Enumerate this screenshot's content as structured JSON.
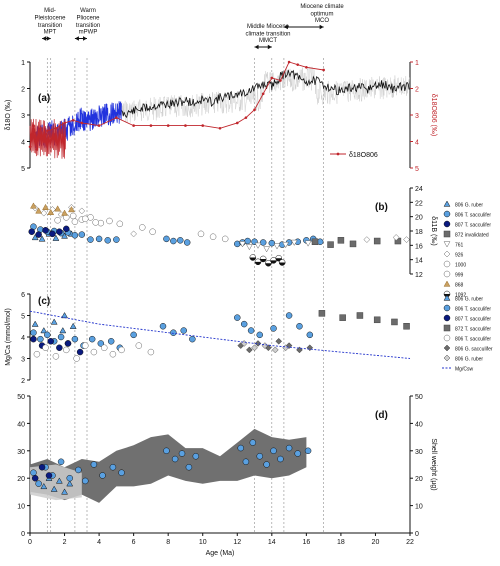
{
  "colors": {
    "black": "#111111",
    "red": "#c0262c",
    "blue": "#2233dd",
    "light_blue": "#5aa0e0",
    "navy": "#0a1a80",
    "tan": "#c9a060",
    "grey": "#888888",
    "dark_grey": "#6b6b6b",
    "light_grey": "#cfcfcf",
    "bg_grey": "#bdbdbd",
    "dotted": "#8c8c8c",
    "mgca_fit": "#2233cc"
  },
  "events": [
    {
      "label": "Mid-Pleistocene transition",
      "label_lines": [
        "Mid-",
        "Pleistocene",
        "transition"
      ],
      "short": "MPT",
      "start": 0.7,
      "end": 1.2
    },
    {
      "label": "Warm Pliocene transition",
      "label_lines": [
        "Warm",
        "Pliocene",
        "transition"
      ],
      "short": "mPWP",
      "start": 2.6,
      "end": 3.3
    },
    {
      "label": "Middle Miocene climate transition",
      "label_lines": [
        "Middle Miocene",
        "climate transition"
      ],
      "short": "MMCT",
      "start": 13.0,
      "end": 14.0
    },
    {
      "label": "Miocene climate optimum",
      "label_lines": [
        "Miocene climate",
        "optimum"
      ],
      "short": "MCO",
      "start": 14.7,
      "end": 17.0
    }
  ],
  "guide_lines": [
    1.0,
    1.2,
    2.6,
    3.3,
    13.0,
    14.0,
    14.7,
    17.0
  ],
  "chart_data": [
    {
      "panel": "a",
      "type": "line",
      "xlabel": "",
      "ylabel_left": "δ18O (‰)",
      "ylabel_right": "δ18O806 (‰)",
      "xlim": [
        0,
        22
      ],
      "ylim_left": [
        5,
        1
      ],
      "ylim_right": [
        5,
        1
      ],
      "left_ticks": [
        1,
        2,
        3,
        4,
        5
      ],
      "right_ticks": [
        1,
        2,
        3,
        4,
        5
      ],
      "legend": "δ18O806",
      "series": [
        {
          "name": "",
          "color": "black",
          "x": [
            5.0,
            5.5,
            6.0,
            6.5,
            7.0,
            7.5,
            8.0,
            8.5,
            9.0,
            9.5,
            10.0,
            10.5,
            11.0,
            11.5,
            12.0,
            12.5,
            13.0,
            13.5,
            14.0,
            14.5,
            15.0,
            15.5,
            16.0,
            16.5,
            17.0,
            17.5,
            18.0,
            18.5,
            19.0,
            19.5,
            20.0,
            20.5,
            21.0,
            21.5,
            22.0
          ],
          "y": [
            2.9,
            2.95,
            2.85,
            2.75,
            2.7,
            2.6,
            2.6,
            2.55,
            2.45,
            2.55,
            2.4,
            2.5,
            2.35,
            2.3,
            2.2,
            2.15,
            2.0,
            1.85,
            1.9,
            1.55,
            1.35,
            1.6,
            1.75,
            1.7,
            1.85,
            2.0,
            2.1,
            2.0,
            1.95,
            2.05,
            1.9,
            1.85,
            2.0,
            1.95,
            1.9
          ]
        },
        {
          "name": "",
          "color": "blue",
          "x": [
            0.3,
            0.6,
            0.9,
            1.2,
            1.5,
            1.8,
            2.1,
            2.4,
            2.7,
            3.0,
            3.3,
            3.6,
            3.9,
            4.2,
            4.5,
            4.8,
            5.1,
            5.3
          ],
          "y": [
            4.0,
            3.7,
            3.9,
            3.6,
            3.8,
            3.5,
            3.6,
            3.4,
            3.3,
            3.1,
            3.3,
            3.2,
            3.1,
            3.0,
            3.0,
            2.95,
            2.9,
            2.9
          ]
        },
        {
          "name": "δ18O806",
          "color": "red",
          "x": [
            0.0,
            0.2,
            0.4,
            0.6,
            0.8,
            1.0,
            1.5,
            2.0,
            2.5,
            3.0,
            4.0,
            5.0,
            6.0,
            7.0,
            8.0,
            9.0,
            10.0,
            11.0,
            12.0,
            12.5,
            13.0,
            13.5,
            14.0,
            14.5,
            15.0,
            15.5,
            16.0,
            17.0
          ],
          "y": [
            4.2,
            3.4,
            4.3,
            3.5,
            4.0,
            3.6,
            3.5,
            3.3,
            3.2,
            3.3,
            3.4,
            3.1,
            3.4,
            3.4,
            3.4,
            3.4,
            3.4,
            3.5,
            3.3,
            3.1,
            2.8,
            2.2,
            1.6,
            1.7,
            1.0,
            1.1,
            1.2,
            1.3
          ]
        }
      ]
    },
    {
      "panel": "b",
      "type": "scatter",
      "ylabel": "δ11B (‰)",
      "xlim": [
        0,
        22
      ],
      "ylim": [
        12,
        24
      ],
      "ticks": [
        12,
        14,
        16,
        18,
        20,
        22,
        24
      ],
      "legend": [
        "806 G. ruber",
        "806 T. sacculifer",
        "807 T. sacculifer",
        "872 invalidated",
        "761",
        "926",
        "1000",
        "999",
        "868",
        "1092"
      ],
      "series": [
        {
          "name": "806 G. ruber",
          "marker": "triangle",
          "color": "light_blue",
          "x": [
            0.3,
            0.7,
            1.1,
            1.5,
            2.0,
            2.4
          ],
          "y": [
            17.1,
            16.9,
            17.6,
            17.0,
            17.3,
            17.6
          ]
        },
        {
          "name": "806 T. sacculifer",
          "marker": "circle",
          "color": "light_blue",
          "x": [
            0.2,
            0.6,
            1.0,
            1.4,
            1.8,
            2.2,
            2.6,
            3.0,
            3.5,
            4.0,
            4.5,
            5.0,
            7.9,
            8.3,
            8.7,
            9.1,
            12.0,
            12.3,
            12.6,
            13.0,
            13.5,
            14.0,
            14.6,
            15.0,
            15.5,
            16.0,
            16.4,
            16.8
          ],
          "y": [
            18.6,
            18.2,
            17.9,
            18.0,
            17.7,
            17.8,
            17.4,
            17.5,
            16.8,
            16.9,
            16.7,
            16.8,
            16.9,
            16.6,
            16.7,
            16.4,
            16.2,
            16.4,
            16.6,
            16.5,
            16.4,
            16.3,
            16.1,
            16.4,
            16.5,
            16.7,
            16.9,
            16.5
          ]
        },
        {
          "name": "807 T. sacculifer",
          "marker": "circle",
          "color": "navy",
          "x": [
            0.1,
            0.5,
            0.9,
            1.3,
            1.7,
            2.1
          ],
          "y": [
            17.9,
            17.5,
            18.1,
            17.6,
            17.9,
            18.3
          ]
        },
        {
          "name": "872 invalidated",
          "marker": "square",
          "color": "dark_grey",
          "x": [
            16.5,
            17.4,
            18.0,
            18.7,
            20.1,
            21.3
          ],
          "y": [
            16.5,
            16.1,
            16.7,
            16.2,
            16.6,
            16.6
          ]
        },
        {
          "name": "761",
          "marker": "tri-down",
          "color": "white",
          "x": [
            12.3,
            12.7,
            13.2,
            13.7,
            14.3,
            14.8,
            15.3,
            16.1
          ],
          "y": [
            16.2,
            15.8,
            16.0,
            15.5,
            15.9,
            16.1,
            16.4,
            16.3
          ]
        },
        {
          "name": "926",
          "marker": "diamond",
          "color": "white",
          "x": [
            0.3,
            0.8,
            1.3,
            1.8,
            2.4,
            3.0,
            6.0,
            19.5,
            21.2,
            21.8
          ],
          "y": [
            21.2,
            20.5,
            21.0,
            20.3,
            21.3,
            20.8,
            17.6,
            16.8,
            17.1,
            16.8
          ]
        },
        {
          "name": "1000",
          "marker": "circle",
          "color": "white",
          "x": [
            2.5,
            3.0,
            3.5,
            4.1,
            4.6,
            5.2,
            6.5,
            7.1,
            9.9,
            10.6,
            11.3
          ],
          "y": [
            20.1,
            19.6,
            19.9,
            19.1,
            19.4,
            19.0,
            18.5,
            17.9,
            17.6,
            17.2,
            16.9
          ]
        },
        {
          "name": "999",
          "marker": "circle",
          "color": "white",
          "x": [
            1.6,
            2.1,
            2.6,
            3.2,
            3.8
          ],
          "y": [
            19.5,
            19.9,
            19.3,
            19.7,
            19.2
          ]
        },
        {
          "name": "868",
          "marker": "triangle",
          "color": "tan",
          "x": [
            0.2,
            0.5,
            0.9,
            1.2,
            1.6,
            2.0,
            2.4
          ],
          "y": [
            21.5,
            20.8,
            21.3,
            20.6,
            21.1,
            20.5,
            21.0
          ]
        },
        {
          "name": "1092",
          "marker": "half-circle",
          "color": "black",
          "x": [
            12.9,
            13.2,
            13.5,
            13.8,
            14.1,
            14.4,
            14.6
          ],
          "y": [
            14.3,
            13.7,
            14.1,
            13.5,
            13.9,
            14.2,
            13.6
          ]
        }
      ]
    },
    {
      "panel": "c",
      "type": "scatter",
      "ylabel": "Mg/Ca (mmol/mol)",
      "xlim": [
        0,
        22
      ],
      "ylim": [
        2,
        6
      ],
      "ticks": [
        2,
        3,
        4,
        5,
        6
      ],
      "legend": [
        "806 G. ruber",
        "806 T. sacculifer",
        "807 T. sacculifer",
        "872 T. sacculifer",
        "806 T. sacculifer",
        "806 G. sacculifer",
        "806 G. ruber",
        "Mg/Csw"
      ],
      "series": [
        {
          "name": "806 G. ruber",
          "marker": "triangle",
          "color": "light_blue",
          "x": [
            0.3,
            0.8,
            1.4,
            1.9,
            2.5,
            2.0
          ],
          "y": [
            4.6,
            4.3,
            4.7,
            4.3,
            4.5,
            5.0
          ]
        },
        {
          "name": "806 T. sacculifer",
          "marker": "circle",
          "color": "light_blue",
          "x": [
            0.2,
            0.6,
            1.0,
            1.4,
            1.8,
            2.2,
            2.6,
            3.1,
            3.6,
            4.1,
            4.7,
            5.2,
            6.0,
            7.7,
            8.3,
            8.9,
            9.4,
            12.0,
            12.4,
            12.8,
            13.3,
            14.1,
            15.0,
            15.6,
            16.2
          ],
          "y": [
            4.2,
            3.9,
            4.1,
            3.8,
            4.0,
            3.7,
            3.9,
            3.6,
            3.9,
            3.7,
            3.8,
            3.5,
            4.1,
            4.5,
            4.2,
            4.3,
            3.9,
            4.9,
            4.6,
            4.3,
            4.1,
            4.4,
            5.0,
            4.5,
            4.1
          ]
        },
        {
          "name": "807 T. sacculifer",
          "marker": "circle",
          "color": "navy",
          "x": [
            0.2,
            0.7,
            1.2,
            1.7,
            2.2,
            2.9
          ],
          "y": [
            3.9,
            3.6,
            3.8,
            3.5,
            3.7,
            3.3
          ]
        },
        {
          "name": "872 T. sacculifer",
          "marker": "square",
          "color": "dark_grey",
          "x": [
            16.9,
            18.1,
            19.1,
            20.1,
            21.1,
            21.8
          ],
          "y": [
            5.1,
            4.9,
            5.0,
            4.8,
            4.7,
            4.5
          ]
        },
        {
          "name": "806 T. sacculifer",
          "marker": "circle",
          "color": "white",
          "x": [
            0.4,
            0.9,
            1.5,
            2.1,
            2.7,
            3.2,
            3.7,
            4.3,
            4.8,
            5.3,
            6.3,
            7.0
          ],
          "y": [
            3.2,
            3.5,
            3.1,
            3.4,
            3.0,
            3.6,
            3.3,
            3.5,
            3.2,
            3.4,
            3.6,
            3.3
          ]
        },
        {
          "name": "806 G. sacculifer",
          "marker": "diamond",
          "color": "dark_grey",
          "x": [
            12.2,
            12.7,
            13.2,
            13.8,
            14.4,
            15.0,
            15.6,
            16.2
          ],
          "y": [
            3.6,
            3.4,
            3.7,
            3.5,
            3.8,
            3.6,
            3.4,
            3.5
          ]
        },
        {
          "name": "806 G. ruber",
          "marker": "diamond",
          "color": "light_grey",
          "x": [
            12.4,
            13.0,
            13.6,
            14.2,
            14.8
          ],
          "y": [
            3.7,
            3.5,
            3.6,
            3.4,
            3.5
          ]
        },
        {
          "name": "Mg/Csw",
          "marker": "dotted-line",
          "color": "mgca_fit",
          "x": [
            0,
            2,
            4,
            6,
            8,
            10,
            12,
            14,
            16,
            18,
            20,
            22
          ],
          "y": [
            5.2,
            4.9,
            4.6,
            4.4,
            4.2,
            4.0,
            3.8,
            3.6,
            3.45,
            3.3,
            3.15,
            3.0
          ]
        }
      ]
    },
    {
      "panel": "d",
      "type": "scatter",
      "xlabel": "Age (Ma)",
      "ylabel": "Shell weight (µg)",
      "xlim": [
        0,
        22
      ],
      "ylim": [
        0,
        50
      ],
      "ticks": [
        0,
        10,
        20,
        30,
        40,
        50
      ],
      "xticks": [
        0,
        2,
        4,
        6,
        8,
        10,
        12,
        14,
        16,
        18,
        20,
        22
      ],
      "band": {
        "x": [
          0.0,
          1.0,
          2.0,
          3.0,
          4.0,
          5.0,
          6.0,
          7.0,
          8.0,
          9.0,
          10.0,
          11.0,
          12.0,
          13.0,
          14.0,
          15.0,
          16.0
        ],
        "upper": [
          25,
          27,
          24,
          27,
          26,
          30,
          32,
          35,
          36,
          31,
          31,
          28,
          33,
          38,
          35,
          34,
          35
        ],
        "lower": [
          15,
          14,
          12,
          14,
          11,
          17,
          17,
          18,
          21,
          19,
          18,
          19,
          19,
          21,
          20,
          21,
          24
        ]
      },
      "series": [
        {
          "name": "806 G. ruber",
          "marker": "triangle",
          "color": "light_blue",
          "x": [
            0.8,
            1.1,
            1.4,
            1.7,
            2.0,
            2.3
          ],
          "y": [
            17,
            20,
            16,
            19,
            15,
            18
          ]
        },
        {
          "name": "806 T. sacculifer",
          "marker": "circle",
          "color": "light_blue",
          "x": [
            0.2,
            0.5,
            0.9,
            1.3,
            1.8,
            2.3,
            2.8,
            3.2,
            3.7,
            4.2,
            4.8,
            5.3,
            7.9,
            8.4,
            8.8,
            9.2,
            9.6,
            12.2,
            12.5,
            12.9,
            13.3,
            13.7,
            14.1,
            14.5,
            15.0,
            15.5,
            16.1
          ],
          "y": [
            22,
            18,
            24,
            21,
            26,
            20,
            23,
            19,
            25,
            21,
            24,
            22,
            30,
            27,
            29,
            24,
            28,
            31,
            26,
            33,
            28,
            25,
            30,
            27,
            31,
            29,
            30
          ]
        },
        {
          "name": "807 T. sacculifer",
          "marker": "circle",
          "color": "navy",
          "x": [
            0.3,
            0.7,
            1.1
          ],
          "y": [
            20,
            24,
            21
          ]
        }
      ]
    }
  ]
}
